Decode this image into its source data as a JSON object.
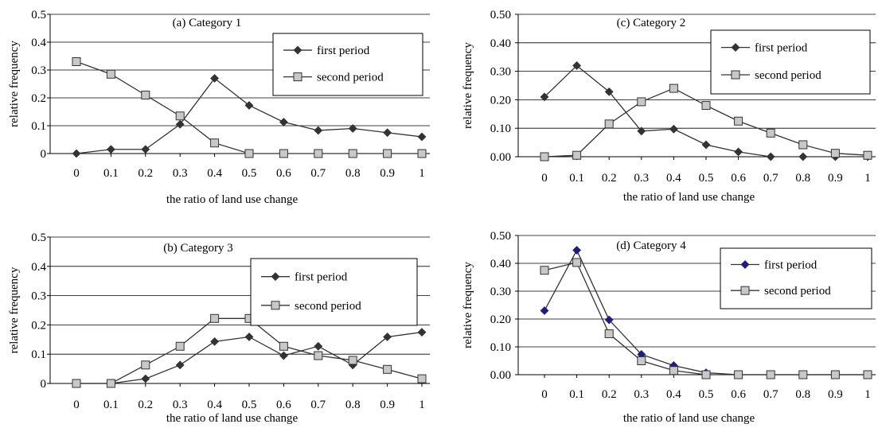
{
  "chart_data": [
    {
      "type": "line",
      "title": "(a)  Category 1",
      "xlabel": "the ratio of land use change",
      "ylabel": "relative frequency",
      "categories": [
        "0",
        "0.1",
        "0.2",
        "0.3",
        "0.4",
        "0.5",
        "0.6",
        "0.7",
        "0.8",
        "0.9",
        "1"
      ],
      "ylim": [
        0,
        0.5
      ],
      "yticks": [
        "0",
        "0.1",
        "0.2",
        "0.3",
        "0.4",
        "0.5"
      ],
      "grid": true,
      "legend_position": "top-right",
      "series": [
        {
          "name": "first period",
          "marker": "diamond",
          "color": "#333333",
          "values": [
            0.0,
            0.015,
            0.015,
            0.105,
            0.27,
            0.173,
            0.113,
            0.083,
            0.09,
            0.075,
            0.06
          ]
        },
        {
          "name": "second period",
          "marker": "square",
          "color": "#333333",
          "values": [
            0.33,
            0.285,
            0.21,
            0.135,
            0.038,
            0.0,
            0.0,
            0.0,
            0.0,
            0.0,
            0.0
          ]
        }
      ]
    },
    {
      "type": "line",
      "title": "(b)  Category 3",
      "xlabel": "the ratio of land use change",
      "ylabel": "relative frequency",
      "categories": [
        "0",
        "0.1",
        "0.2",
        "0.3",
        "0.4",
        "0.5",
        "0.6",
        "0.7",
        "0.8",
        "0.9",
        "1"
      ],
      "ylim": [
        0,
        0.5
      ],
      "yticks": [
        "0",
        "0.1",
        "0.2",
        "0.3",
        "0.4",
        "0.5"
      ],
      "grid": true,
      "legend_position": "top-right",
      "series": [
        {
          "name": "first period",
          "marker": "diamond",
          "color": "#333333",
          "values": [
            0.0,
            0.0,
            0.016,
            0.063,
            0.143,
            0.159,
            0.095,
            0.127,
            0.063,
            0.159,
            0.175
          ]
        },
        {
          "name": "second period",
          "marker": "square",
          "color": "#333333",
          "values": [
            0.0,
            0.0,
            0.063,
            0.127,
            0.222,
            0.222,
            0.127,
            0.095,
            0.079,
            0.048,
            0.016
          ]
        }
      ]
    },
    {
      "type": "line",
      "title": "(c)  Category 2",
      "xlabel": "the ratio of land use change",
      "ylabel": "relative frequency",
      "categories": [
        "0",
        "0.1",
        "0.2",
        "0.3",
        "0.4",
        "0.5",
        "0.6",
        "0.7",
        "0.8",
        "0.9",
        "1"
      ],
      "ylim": [
        0,
        0.5
      ],
      "yticks": [
        "0.00",
        "0.10",
        "0.20",
        "0.30",
        "0.40",
        "0.50"
      ],
      "grid": true,
      "legend_position": "top-right",
      "series": [
        {
          "name": "first period",
          "marker": "diamond",
          "color": "#333333",
          "values": [
            0.21,
            0.32,
            0.228,
            0.09,
            0.097,
            0.042,
            0.017,
            0.0,
            0.0,
            0.0,
            0.0
          ]
        },
        {
          "name": "second period",
          "marker": "square",
          "color": "#333333",
          "values": [
            0.0,
            0.005,
            0.115,
            0.193,
            0.24,
            0.18,
            0.125,
            0.083,
            0.042,
            0.012,
            0.005
          ]
        }
      ]
    },
    {
      "type": "line",
      "title": "(d)  Category 4",
      "xlabel": "the ratio of land use change",
      "ylabel": "relative frequency",
      "categories": [
        "0",
        "0.1",
        "0.2",
        "0.3",
        "0.4",
        "0.5",
        "0.6",
        "0.7",
        "0.8",
        "0.9",
        "1"
      ],
      "ylim": [
        0,
        0.5
      ],
      "yticks": [
        "0.00",
        "0.10",
        "0.20",
        "0.30",
        "0.40",
        "0.50"
      ],
      "grid": true,
      "legend_position": "top-right",
      "series": [
        {
          "name": "first period",
          "marker": "diamond",
          "color": "#1f1f7a",
          "values": [
            0.23,
            0.447,
            0.197,
            0.073,
            0.033,
            0.007,
            0.0,
            0.0,
            0.0,
            0.0,
            0.0
          ]
        },
        {
          "name": "second period",
          "marker": "square",
          "color": "#333333",
          "values": [
            0.375,
            0.403,
            0.147,
            0.05,
            0.015,
            0.0,
            0.0,
            0.0,
            0.0,
            0.0,
            0.0
          ]
        }
      ]
    }
  ]
}
